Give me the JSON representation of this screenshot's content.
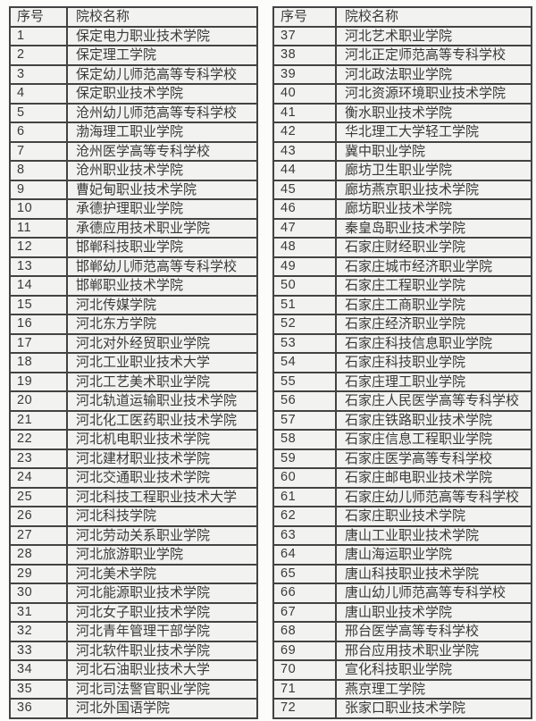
{
  "colors": {
    "page_background": "#fcfcfb",
    "cell_background": "#f2f2f0",
    "border": "#434343",
    "text": "#3a3a3a"
  },
  "tables": [
    {
      "headers": {
        "no": "序号",
        "name": "院校名称"
      },
      "rows": [
        {
          "no": "1",
          "name": "保定电力职业技术学院"
        },
        {
          "no": "2",
          "name": "保定理工学院"
        },
        {
          "no": "3",
          "name": "保定幼儿师范高等专科学校"
        },
        {
          "no": "4",
          "name": "保定职业技术学院"
        },
        {
          "no": "5",
          "name": "沧州幼儿师范高等专科学校"
        },
        {
          "no": "6",
          "name": "渤海理工职业学院"
        },
        {
          "no": "7",
          "name": "沧州医学高等专科学校"
        },
        {
          "no": "8",
          "name": "沧州职业技术学院"
        },
        {
          "no": "9",
          "name": "曹妃甸职业技术学院"
        },
        {
          "no": "10",
          "name": "承德护理职业学院"
        },
        {
          "no": "11",
          "name": "承德应用技术职业学院"
        },
        {
          "no": "12",
          "name": "邯郸科技职业学院"
        },
        {
          "no": "13",
          "name": "邯郸幼儿师范高等专科学校"
        },
        {
          "no": "14",
          "name": "邯郸职业技术学院"
        },
        {
          "no": "15",
          "name": "河北传媒学院"
        },
        {
          "no": "16",
          "name": "河北东方学院"
        },
        {
          "no": "17",
          "name": "河北对外经贸职业学院"
        },
        {
          "no": "18",
          "name": "河北工业职业技术大学"
        },
        {
          "no": "19",
          "name": "河北工艺美术职业学院"
        },
        {
          "no": "20",
          "name": "河北轨道运输职业技术学院"
        },
        {
          "no": "21",
          "name": "河北化工医药职业技术学院"
        },
        {
          "no": "22",
          "name": "河北机电职业技术学院"
        },
        {
          "no": "23",
          "name": "河北建材职业技术学院"
        },
        {
          "no": "24",
          "name": "河北交通职业技术学院"
        },
        {
          "no": "25",
          "name": "河北科技工程职业技术大学"
        },
        {
          "no": "26",
          "name": "河北科技学院"
        },
        {
          "no": "27",
          "name": "河北劳动关系职业学院"
        },
        {
          "no": "28",
          "name": "河北旅游职业学院"
        },
        {
          "no": "29",
          "name": "河北美术学院"
        },
        {
          "no": "30",
          "name": "河北能源职业技术学院"
        },
        {
          "no": "31",
          "name": "河北女子职业技术学院"
        },
        {
          "no": "32",
          "name": "河北青年管理干部学院"
        },
        {
          "no": "33",
          "name": "河北软件职业技术学院"
        },
        {
          "no": "34",
          "name": "河北石油职业技术大学"
        },
        {
          "no": "35",
          "name": "河北司法警官职业学院"
        },
        {
          "no": "36",
          "name": "河北外国语学院"
        }
      ]
    },
    {
      "headers": {
        "no": "序号",
        "name": "院校名称"
      },
      "rows": [
        {
          "no": "37",
          "name": "河北艺术职业学院"
        },
        {
          "no": "38",
          "name": "河北正定师范高等专科学校"
        },
        {
          "no": "39",
          "name": "河北政法职业学院"
        },
        {
          "no": "40",
          "name": "河北资源环境职业技术学院"
        },
        {
          "no": "41",
          "name": "衡水职业技术学院"
        },
        {
          "no": "42",
          "name": "华北理工大学轻工学院"
        },
        {
          "no": "43",
          "name": "冀中职业学院"
        },
        {
          "no": "44",
          "name": "廊坊卫生职业学院"
        },
        {
          "no": "45",
          "name": "廊坊燕京职业技术学院"
        },
        {
          "no": "46",
          "name": "廊坊职业技术学院"
        },
        {
          "no": "47",
          "name": "秦皇岛职业技术学院"
        },
        {
          "no": "48",
          "name": "石家庄财经职业学院"
        },
        {
          "no": "49",
          "name": "石家庄城市经济职业学院"
        },
        {
          "no": "50",
          "name": "石家庄工程职业学院"
        },
        {
          "no": "51",
          "name": "石家庄工商职业学院"
        },
        {
          "no": "52",
          "name": "石家庄经济职业学院"
        },
        {
          "no": "53",
          "name": "石家庄科技信息职业学院"
        },
        {
          "no": "54",
          "name": "石家庄科技职业学院"
        },
        {
          "no": "55",
          "name": "石家庄理工职业学院"
        },
        {
          "no": "56",
          "name": "石家庄人民医学高等专科学校"
        },
        {
          "no": "57",
          "name": "石家庄铁路职业技术学院"
        },
        {
          "no": "58",
          "name": "石家庄信息工程职业学院"
        },
        {
          "no": "59",
          "name": "石家庄医学高等专科学校"
        },
        {
          "no": "60",
          "name": "石家庄邮电职业技术学院"
        },
        {
          "no": "61",
          "name": "石家庄幼儿师范高等专科学校"
        },
        {
          "no": "62",
          "name": "石家庄职业技术学院"
        },
        {
          "no": "63",
          "name": "唐山工业职业技术学院"
        },
        {
          "no": "64",
          "name": "唐山海运职业学院"
        },
        {
          "no": "65",
          "name": "唐山科技职业技术学院"
        },
        {
          "no": "66",
          "name": "唐山幼儿师范高等专科学校"
        },
        {
          "no": "67",
          "name": "唐山职业技术学院"
        },
        {
          "no": "68",
          "name": "邢台医学高等专科学校"
        },
        {
          "no": "69",
          "name": "邢台应用技术职业学院"
        },
        {
          "no": "70",
          "name": "宣化科技职业学院"
        },
        {
          "no": "71",
          "name": "燕京理工学院"
        },
        {
          "no": "72",
          "name": "张家口职业技术学院"
        }
      ]
    }
  ]
}
